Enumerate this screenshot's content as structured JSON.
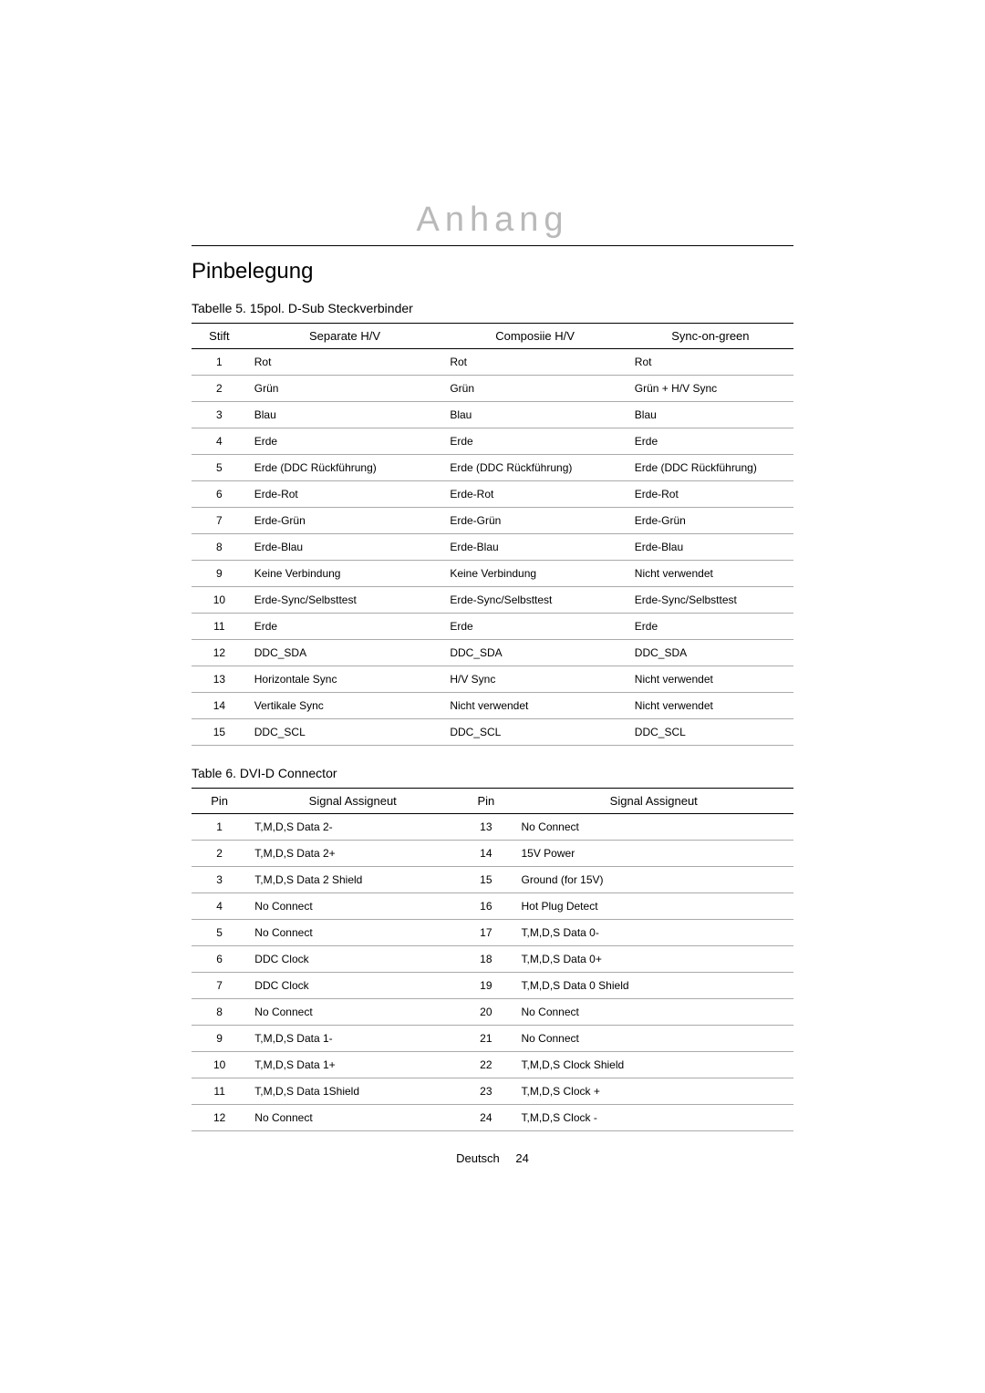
{
  "chapter": "Anhang",
  "section": "Pinbelegung",
  "table1": {
    "caption": "Tabelle 5.  15pol. D-Sub Steckverbinder",
    "headers": [
      "Stift",
      "Separate H/V",
      "Composiie H/V",
      "Sync-on-green"
    ],
    "rows": [
      [
        "1",
        "Rot",
        "Rot",
        "Rot"
      ],
      [
        "2",
        "Grün",
        "Grün",
        "Grün + H/V Sync"
      ],
      [
        "3",
        "Blau",
        "Blau",
        "Blau"
      ],
      [
        "4",
        "Erde",
        "Erde",
        "Erde"
      ],
      [
        "5",
        "Erde (DDC Rückführung)",
        "Erde (DDC Rückführung)",
        "Erde (DDC Rückführung)"
      ],
      [
        "6",
        "Erde-Rot",
        "Erde-Rot",
        "Erde-Rot"
      ],
      [
        "7",
        "Erde-Grün",
        "Erde-Grün",
        "Erde-Grün"
      ],
      [
        "8",
        "Erde-Blau",
        "Erde-Blau",
        "Erde-Blau"
      ],
      [
        "9",
        "Keine Verbindung",
        "Keine Verbindung",
        "Nicht verwendet"
      ],
      [
        "10",
        "Erde-Sync/Selbsttest",
        "Erde-Sync/Selbsttest",
        "Erde-Sync/Selbsttest"
      ],
      [
        "11",
        "Erde",
        "Erde",
        "Erde"
      ],
      [
        "12",
        "DDC_SDA",
        "DDC_SDA",
        "DDC_SDA"
      ],
      [
        "13",
        "Horizontale Sync",
        "H/V Sync",
        "Nicht verwendet"
      ],
      [
        "14",
        "Vertikale Sync",
        "Nicht verwendet",
        "Nicht verwendet"
      ],
      [
        "15",
        "DDC_SCL",
        "DDC_SCL",
        "DDC_SCL"
      ]
    ]
  },
  "table2": {
    "caption": "Table 6.  DVI-D Connector",
    "headers": [
      "Pin",
      "Signal Assigneut",
      "Pin",
      "Signal Assigneut"
    ],
    "rows": [
      [
        "1",
        "T,M,D,S Data 2-",
        "13",
        "No Connect"
      ],
      [
        "2",
        "T,M,D,S Data 2+",
        "14",
        "15V Power"
      ],
      [
        "3",
        "T,M,D,S Data 2 Shield",
        "15",
        "Ground (for 15V)"
      ],
      [
        "4",
        "No Connect",
        "16",
        "Hot Plug Detect"
      ],
      [
        "5",
        "No Connect",
        "17",
        "T,M,D,S Data 0-"
      ],
      [
        "6",
        "DDC Clock",
        "18",
        "T,M,D,S Data 0+"
      ],
      [
        "7",
        "DDC Clock",
        "19",
        "T,M,D,S Data 0 Shield"
      ],
      [
        "8",
        "No Connect",
        "20",
        "No Connect"
      ],
      [
        "9",
        "T,M,D,S Data 1-",
        "21",
        "No Connect"
      ],
      [
        "10",
        "T,M,D,S Data 1+",
        "22",
        "T,M,D,S Clock Shield"
      ],
      [
        "11",
        "T,M,D,S Data 1Shield",
        "23",
        "T,M,D,S Clock +"
      ],
      [
        "12",
        "No Connect",
        "24",
        "T,M,D,S Clock -"
      ]
    ]
  },
  "footer": {
    "lang": "Deutsch",
    "page": "24"
  },
  "style": {
    "page_bg": "#ffffff",
    "text_color": "#000000",
    "chapter_color": "#b9b9b9",
    "rule_color": "#000000",
    "row_border_color": "#aaaaaa",
    "chapter_fontsize": 38,
    "section_fontsize": 24,
    "caption_fontsize": 14,
    "header_fontsize": 13,
    "cell_fontsize": 12
  }
}
